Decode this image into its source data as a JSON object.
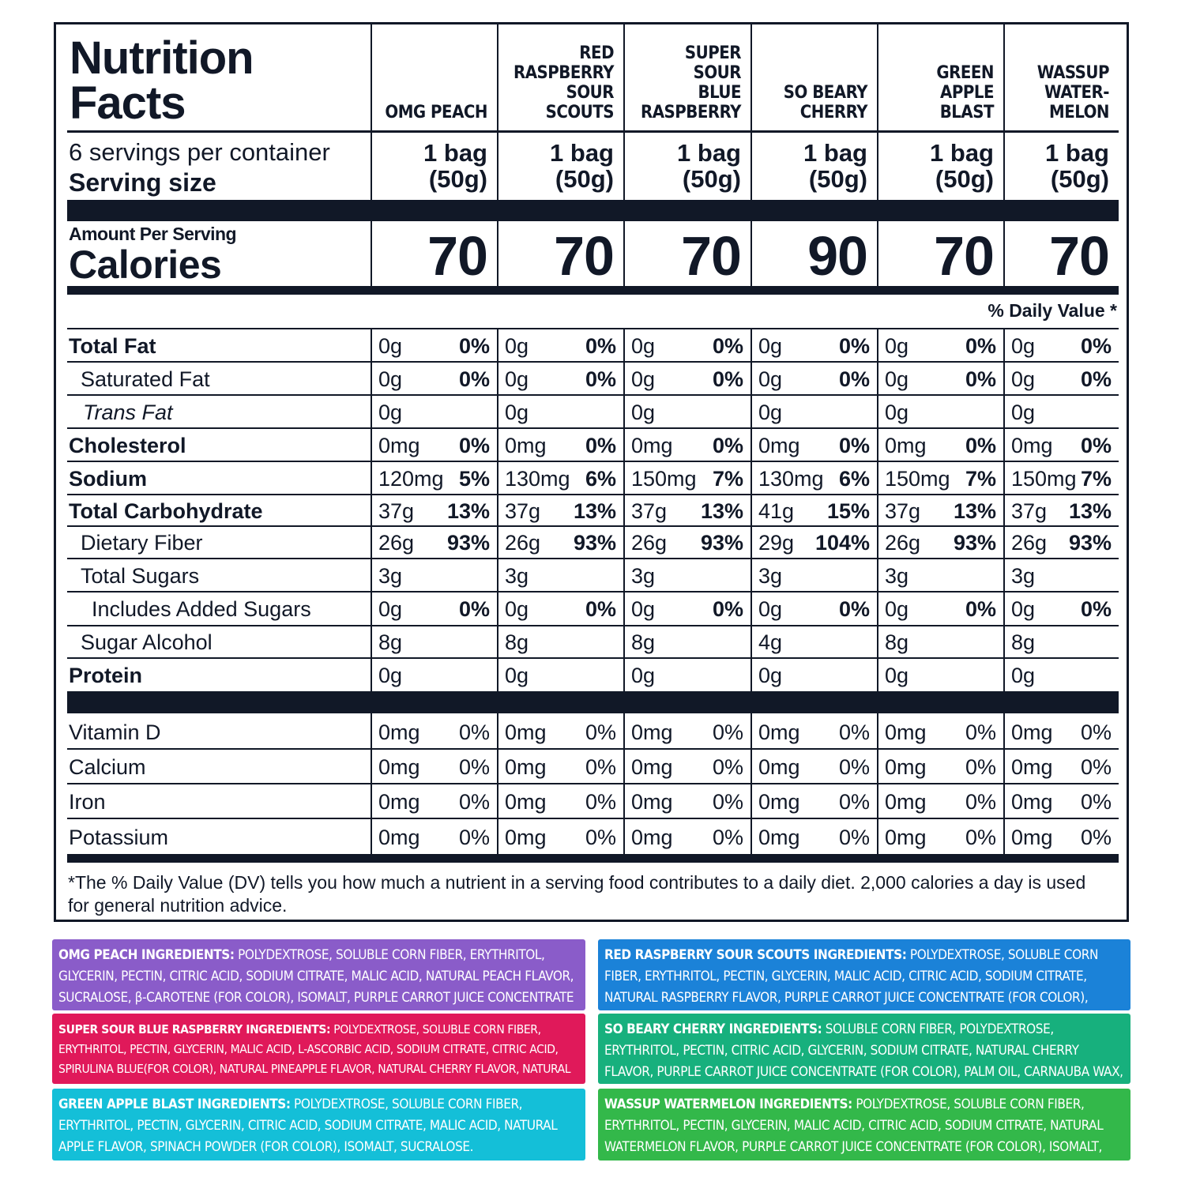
{
  "label": {
    "title_line1": "Nutrition",
    "title_line2": "Facts",
    "servings_per_container": "6 servings per container",
    "serving_size_label": "Serving size",
    "amount_per_serving": "Amount Per Serving",
    "calories_label": "Calories",
    "daily_value_header": "% Daily Value *",
    "footnote": "*The % Daily Value (DV) tells you how much a nutrient in a serving food contributes to a daily diet. 2,000 calories a day is used for general nutrition advice."
  },
  "flavors": [
    {
      "name": "OMG PEACH",
      "serving_line1": "1 bag",
      "serving_line2": "(50g)",
      "calories": "70"
    },
    {
      "name": "RED\nRASPBERRY\nSOUR\nSCOUTS",
      "serving_line1": "1 bag",
      "serving_line2": "(50g)",
      "calories": "70"
    },
    {
      "name": "SUPER\nSOUR\nBLUE\nRASPBERRY",
      "serving_line1": "1 bag",
      "serving_line2": "(50g)",
      "calories": "70"
    },
    {
      "name": "SO BEARY\nCHERRY",
      "serving_line1": "1 bag",
      "serving_line2": "(50g)",
      "calories": "90"
    },
    {
      "name": "GREEN\nAPPLE\nBLAST",
      "serving_line1": "1 bag",
      "serving_line2": "(50g)",
      "calories": "70"
    },
    {
      "name": "WASSUP\nWATER-\nMELON",
      "serving_line1": "1 bag",
      "serving_line2": "(50g)",
      "calories": "70"
    }
  ],
  "nutrients": [
    {
      "label": "Total Fat",
      "style": "bold",
      "values": [
        [
          "0g",
          "0%"
        ],
        [
          "0g",
          "0%"
        ],
        [
          "0g",
          "0%"
        ],
        [
          "0g",
          "0%"
        ],
        [
          "0g",
          "0%"
        ],
        [
          "0g",
          "0%"
        ]
      ]
    },
    {
      "label": "Saturated Fat",
      "style": "indent",
      "values": [
        [
          "0g",
          "0%"
        ],
        [
          "0g",
          "0%"
        ],
        [
          "0g",
          "0%"
        ],
        [
          "0g",
          "0%"
        ],
        [
          "0g",
          "0%"
        ],
        [
          "0g",
          "0%"
        ]
      ]
    },
    {
      "label": "Trans Fat",
      "style": "italic",
      "values": [
        [
          "0g",
          ""
        ],
        [
          "0g",
          ""
        ],
        [
          "0g",
          ""
        ],
        [
          "0g",
          ""
        ],
        [
          "0g",
          ""
        ],
        [
          "0g",
          ""
        ]
      ]
    },
    {
      "label": "Cholesterol",
      "style": "bold",
      "values": [
        [
          "0mg",
          "0%"
        ],
        [
          "0mg",
          "0%"
        ],
        [
          "0mg",
          "0%"
        ],
        [
          "0mg",
          "0%"
        ],
        [
          "0mg",
          "0%"
        ],
        [
          "0mg",
          "0%"
        ]
      ]
    },
    {
      "label": "Sodium",
      "style": "bold",
      "values": [
        [
          "120mg",
          "5%"
        ],
        [
          "130mg",
          "6%"
        ],
        [
          "150mg",
          "7%"
        ],
        [
          "130mg",
          "6%"
        ],
        [
          "150mg",
          "7%"
        ],
        [
          "150mg",
          "7%"
        ]
      ]
    },
    {
      "label": "Total Carbohydrate",
      "style": "bold",
      "values": [
        [
          "37g",
          "13%"
        ],
        [
          "37g",
          "13%"
        ],
        [
          "37g",
          "13%"
        ],
        [
          "41g",
          "15%"
        ],
        [
          "37g",
          "13%"
        ],
        [
          "37g",
          "13%"
        ]
      ]
    },
    {
      "label": "Dietary Fiber",
      "style": "indent",
      "values": [
        [
          "26g",
          "93%"
        ],
        [
          "26g",
          "93%"
        ],
        [
          "26g",
          "93%"
        ],
        [
          "29g",
          "104%"
        ],
        [
          "26g",
          "93%"
        ],
        [
          "26g",
          "93%"
        ]
      ]
    },
    {
      "label": "Total Sugars",
      "style": "indent",
      "values": [
        [
          "3g",
          ""
        ],
        [
          "3g",
          ""
        ],
        [
          "3g",
          ""
        ],
        [
          "3g",
          ""
        ],
        [
          "3g",
          ""
        ],
        [
          "3g",
          ""
        ]
      ]
    },
    {
      "label": "Includes Added Sugars",
      "style": "indent2",
      "values": [
        [
          "0g",
          "0%"
        ],
        [
          "0g",
          "0%"
        ],
        [
          "0g",
          "0%"
        ],
        [
          "0g",
          "0%"
        ],
        [
          "0g",
          "0%"
        ],
        [
          "0g",
          "0%"
        ]
      ]
    },
    {
      "label": "Sugar Alcohol",
      "style": "indent",
      "values": [
        [
          "8g",
          ""
        ],
        [
          "8g",
          ""
        ],
        [
          "8g",
          ""
        ],
        [
          "4g",
          ""
        ],
        [
          "8g",
          ""
        ],
        [
          "8g",
          ""
        ]
      ]
    },
    {
      "label": "Protein",
      "style": "bold",
      "values": [
        [
          "0g",
          ""
        ],
        [
          "0g",
          ""
        ],
        [
          "0g",
          ""
        ],
        [
          "0g",
          ""
        ],
        [
          "0g",
          ""
        ],
        [
          "0g",
          ""
        ]
      ]
    }
  ],
  "vitamins": [
    {
      "label": "Vitamin D",
      "values": [
        [
          "0mg",
          "0%"
        ],
        [
          "0mg",
          "0%"
        ],
        [
          "0mg",
          "0%"
        ],
        [
          "0mg",
          "0%"
        ],
        [
          "0mg",
          "0%"
        ],
        [
          "0mg",
          "0%"
        ]
      ]
    },
    {
      "label": "Calcium",
      "values": [
        [
          "0mg",
          "0%"
        ],
        [
          "0mg",
          "0%"
        ],
        [
          "0mg",
          "0%"
        ],
        [
          "0mg",
          "0%"
        ],
        [
          "0mg",
          "0%"
        ],
        [
          "0mg",
          "0%"
        ]
      ]
    },
    {
      "label": "Iron",
      "values": [
        [
          "0mg",
          "0%"
        ],
        [
          "0mg",
          "0%"
        ],
        [
          "0mg",
          "0%"
        ],
        [
          "0mg",
          "0%"
        ],
        [
          "0mg",
          "0%"
        ],
        [
          "0mg",
          "0%"
        ]
      ]
    },
    {
      "label": "Potassium",
      "values": [
        [
          "0mg",
          "0%"
        ],
        [
          "0mg",
          "0%"
        ],
        [
          "0mg",
          "0%"
        ],
        [
          "0mg",
          "0%"
        ],
        [
          "0mg",
          "0%"
        ],
        [
          "0mg",
          "0%"
        ]
      ]
    }
  ],
  "ingredients": [
    {
      "heading": "OMG PEACH INGREDIENTS:",
      "text": "POLYDEXTROSE, SOLUBLE CORN FIBER, ERYTHRITOL, GLYCERIN, PECTIN, CITRIC ACID, SODIUM CITRATE, MALIC ACID, NATURAL PEACH FLAVOR, SUCRALOSE, β-CAROTENE (FOR COLOR), ISOMALT, PURPLE CARROT JUICE CONCENTRATE (FOR COLOR).",
      "color": "#8a5cc9"
    },
    {
      "heading": "RED RASPBERRY SOUR SCOUTS INGREDIENTS:",
      "text": "POLYDEXTROSE, SOLUBLE CORN FIBER, ERYTHRITOL, PECTIN, GLYCERIN, MALIC ACID, CITRIC ACID, SODIUM CITRATE, NATURAL RASPBERRY FLAVOR, PURPLE CARROT JUICE CONCENTRATE (FOR COLOR), ISOMALT, SUCRALOSE.",
      "color": "#1b82d8"
    },
    {
      "heading": "SUPER SOUR BLUE RASPBERRY INGREDIENTS:",
      "text": "POLYDEXTROSE, SOLUBLE CORN FIBER, ERYTHRITOL, PECTIN, GLYCERIN, MALIC ACID, L-ASCORBIC ACID, SODIUM CITRATE, CITRIC ACID, SPIRULINA BLUE(FOR COLOR), NATURAL PINEAPPLE FLAVOR, NATURAL CHERRY FLAVOR, NATURAL BANANA FLAVOR, ISOMALT, SUCRALOSE.",
      "color": "#e0195a"
    },
    {
      "heading": "SO BEARY CHERRY INGREDIENTS:",
      "text": "SOLUBLE CORN FIBER, POLYDEXTROSE, ERYTHRITOL, PECTIN, CITRIC ACID, GLYCERIN, SODIUM CITRATE, NATURAL CHERRY FLAVOR, PURPLE CARROT JUICE CONCENTRATE (FOR COLOR), PALM OIL, CARNAUBA WAX, ISOMALT, SUCRALOSE.",
      "color": "#17b07d"
    },
    {
      "heading": "GREEN APPLE BLAST INGREDIENTS:",
      "text": "POLYDEXTROSE, SOLUBLE CORN FIBER, ERYTHRITOL, PECTIN, GLYCERIN, CITRIC ACID, SODIUM CITRATE, MALIC ACID, NATURAL APPLE FLAVOR, SPINACH POWDER (FOR COLOR), ISOMALT, SUCRALOSE.",
      "color": "#14bfd8"
    },
    {
      "heading": "WASSUP WATERMELON INGREDIENTS:",
      "text": "POLYDEXTROSE, SOLUBLE CORN FIBER, ERYTHRITOL, PECTIN, GLYCERIN, MALIC ACID, CITRIC ACID, SODIUM CITRATE, NATURAL WATERMELON FLAVOR, PURPLE CARROT JUICE CONCENTRATE (FOR COLOR), ISOMALT, SUCRALOSE.",
      "color": "#33b84a"
    }
  ]
}
